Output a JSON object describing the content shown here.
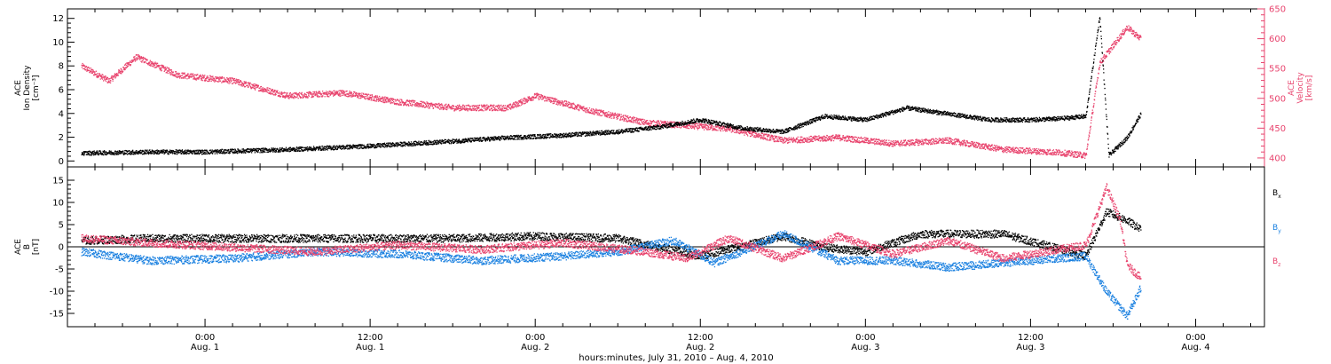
{
  "chart_data": [
    {
      "type": "scatter",
      "panel": "top",
      "ylabel_left": [
        "ACE",
        "Ion Density",
        "[cm⁻³]"
      ],
      "ylabel_right": [
        "ACE",
        "Velocity",
        "[km/s]"
      ],
      "ylim_left": [
        -0.5,
        12.8
      ],
      "ylim_right": [
        385,
        650
      ],
      "yticks_left": [
        0,
        2,
        4,
        6,
        8,
        10,
        12
      ],
      "yticks_right": [
        400,
        450,
        500,
        550,
        600,
        650
      ],
      "series": [
        {
          "axis": "left",
          "color": "#000000",
          "points": [
            [
              "2010-07-31T15:00",
              0.7
            ],
            [
              "2010-07-31T20:00",
              0.8
            ],
            [
              "2010-08-01T00:00",
              0.8
            ],
            [
              "2010-08-01T06:00",
              1.0
            ],
            [
              "2010-08-01T12:00",
              1.3
            ],
            [
              "2010-08-01T18:00",
              1.7
            ],
            [
              "2010-08-01T22:00",
              2.0
            ],
            [
              "2010-08-02T02:00",
              2.2
            ],
            [
              "2010-08-02T06:00",
              2.5
            ],
            [
              "2010-08-02T09:00",
              2.9
            ],
            [
              "2010-08-02T12:00",
              3.5
            ],
            [
              "2010-08-02T15:00",
              2.8
            ],
            [
              "2010-08-02T18:00",
              2.5
            ],
            [
              "2010-08-02T21:00",
              3.8
            ],
            [
              "2010-08-03T00:00",
              3.5
            ],
            [
              "2010-08-03T03:00",
              4.5
            ],
            [
              "2010-08-03T06:00",
              4.0
            ],
            [
              "2010-08-03T09:00",
              3.5
            ],
            [
              "2010-08-03T12:00",
              3.5
            ],
            [
              "2010-08-03T14:00",
              3.6
            ],
            [
              "2010-08-03T16:00",
              3.8
            ],
            [
              "2010-08-03T17:00",
              12.2
            ],
            [
              "2010-08-03T17:40",
              0.5
            ],
            [
              "2010-08-03T19:00",
              2.0
            ],
            [
              "2010-08-03T20:00",
              4.0
            ]
          ]
        },
        {
          "axis": "right",
          "color": "#e8436d",
          "points": [
            [
              "2010-07-31T15:00",
              555
            ],
            [
              "2010-07-31T17:00",
              530
            ],
            [
              "2010-07-31T19:00",
              570
            ],
            [
              "2010-07-31T22:00",
              540
            ],
            [
              "2010-08-01T02:00",
              530
            ],
            [
              "2010-08-01T06:00",
              505
            ],
            [
              "2010-08-01T10:00",
              510
            ],
            [
              "2010-08-01T14:00",
              495
            ],
            [
              "2010-08-01T18:00",
              485
            ],
            [
              "2010-08-01T22:00",
              485
            ],
            [
              "2010-08-02T00:00",
              505
            ],
            [
              "2010-08-02T04:00",
              480
            ],
            [
              "2010-08-02T08:00",
              460
            ],
            [
              "2010-08-02T11:00",
              455
            ],
            [
              "2010-08-02T14:00",
              450
            ],
            [
              "2010-08-02T18:00",
              430
            ],
            [
              "2010-08-02T22:00",
              435
            ],
            [
              "2010-08-03T02:00",
              425
            ],
            [
              "2010-08-03T06:00",
              430
            ],
            [
              "2010-08-03T10:00",
              415
            ],
            [
              "2010-08-03T14:00",
              410
            ],
            [
              "2010-08-03T16:00",
              405
            ],
            [
              "2010-08-03T17:00",
              560
            ],
            [
              "2010-08-03T18:00",
              590
            ],
            [
              "2010-08-03T19:00",
              620
            ],
            [
              "2010-08-03T20:00",
              600
            ]
          ]
        }
      ]
    },
    {
      "type": "scatter",
      "panel": "bottom",
      "ylabel_left": [
        "ACE",
        "B",
        "[nT]"
      ],
      "ylim": [
        -18,
        18
      ],
      "yticks": [
        -15,
        -10,
        -5,
        0,
        5,
        10,
        15
      ],
      "zero_line": true,
      "legend": [
        "B",
        "B",
        "B"
      ],
      "legend_subscripts": [
        "x",
        "y",
        "z"
      ],
      "legend_position": "right",
      "series": [
        {
          "name": "B",
          "color": "#000000",
          "points": [
            [
              "2010-07-31T15:00",
              1.5
            ],
            [
              "2010-07-31T20:00",
              2.0
            ],
            [
              "2010-08-01T06:00",
              2.0
            ],
            [
              "2010-08-01T18:00",
              2.0
            ],
            [
              "2010-08-02T00:00",
              2.5
            ],
            [
              "2010-08-02T06:00",
              2.0
            ],
            [
              "2010-08-02T12:00",
              -2.0
            ],
            [
              "2010-08-02T18:00",
              2.5
            ],
            [
              "2010-08-02T21:00",
              0.0
            ],
            [
              "2010-08-03T00:00",
              -1.0
            ],
            [
              "2010-08-03T04:00",
              3.0
            ],
            [
              "2010-08-03T10:00",
              3.0
            ],
            [
              "2010-08-03T16:00",
              -2.0
            ],
            [
              "2010-08-03T17:30",
              8.0
            ],
            [
              "2010-08-03T19:00",
              6.0
            ],
            [
              "2010-08-03T20:00",
              4.0
            ]
          ]
        },
        {
          "name": "B",
          "color": "#1a80e0",
          "points": [
            [
              "2010-07-31T15:00",
              -1.0
            ],
            [
              "2010-07-31T20:00",
              -3.0
            ],
            [
              "2010-08-01T02:00",
              -2.5
            ],
            [
              "2010-08-01T08:00",
              -1.0
            ],
            [
              "2010-08-01T14:00",
              -1.5
            ],
            [
              "2010-08-01T20:00",
              -3.0
            ],
            [
              "2010-08-02T02:00",
              -2.0
            ],
            [
              "2010-08-02T06:00",
              -1.0
            ],
            [
              "2010-08-02T10:00",
              1.5
            ],
            [
              "2010-08-02T13:00",
              -3.5
            ],
            [
              "2010-08-02T18:00",
              3.0
            ],
            [
              "2010-08-02T22:00",
              -3.0
            ],
            [
              "2010-08-03T02:00",
              -3.0
            ],
            [
              "2010-08-03T06:00",
              -4.5
            ],
            [
              "2010-08-03T10:00",
              -3.5
            ],
            [
              "2010-08-03T16:00",
              -2.0
            ],
            [
              "2010-08-03T17:30",
              -10.0
            ],
            [
              "2010-08-03T19:00",
              -15.5
            ],
            [
              "2010-08-03T20:00",
              -9.0
            ]
          ]
        },
        {
          "name": "B",
          "color": "#e8436d",
          "points": [
            [
              "2010-07-31T15:00",
              2.0
            ],
            [
              "2010-07-31T20:00",
              1.0
            ],
            [
              "2010-08-01T02:00",
              0.0
            ],
            [
              "2010-08-01T08:00",
              -1.0
            ],
            [
              "2010-08-01T14:00",
              0.5
            ],
            [
              "2010-08-01T20:00",
              -0.5
            ],
            [
              "2010-08-02T02:00",
              1.0
            ],
            [
              "2010-08-02T08:00",
              -1.0
            ],
            [
              "2010-08-02T11:00",
              -2.5
            ],
            [
              "2010-08-02T14:00",
              2.0
            ],
            [
              "2010-08-02T18:00",
              -2.5
            ],
            [
              "2010-08-02T22:00",
              2.5
            ],
            [
              "2010-08-03T02:00",
              -1.5
            ],
            [
              "2010-08-03T06:00",
              1.5
            ],
            [
              "2010-08-03T10:00",
              -2.5
            ],
            [
              "2010-08-03T16:00",
              0.5
            ],
            [
              "2010-08-03T17:30",
              13.5
            ],
            [
              "2010-08-03T18:30",
              6.0
            ],
            [
              "2010-08-03T19:00",
              -4.0
            ],
            [
              "2010-08-03T20:00",
              -7.0
            ]
          ]
        }
      ]
    }
  ],
  "xaxis": {
    "range": [
      "2010-07-31T14:00",
      "2010-08-04T05:00"
    ],
    "ticks": [
      {
        "t": "2010-08-01T00:00",
        "time": "0:00",
        "day": "Aug. 1"
      },
      {
        "t": "2010-08-01T12:00",
        "time": "12:00",
        "day": "Aug. 1"
      },
      {
        "t": "2010-08-02T00:00",
        "time": "0:00",
        "day": "Aug. 2"
      },
      {
        "t": "2010-08-02T12:00",
        "time": "12:00",
        "day": "Aug. 2"
      },
      {
        "t": "2010-08-03T00:00",
        "time": "0:00",
        "day": "Aug. 3"
      },
      {
        "t": "2010-08-03T12:00",
        "time": "12:00",
        "day": "Aug. 3"
      },
      {
        "t": "2010-08-04T00:00",
        "time": "0:00",
        "day": "Aug. 4"
      }
    ],
    "label": "hours:minutes, July 31, 2010 – Aug.  4, 2010"
  }
}
